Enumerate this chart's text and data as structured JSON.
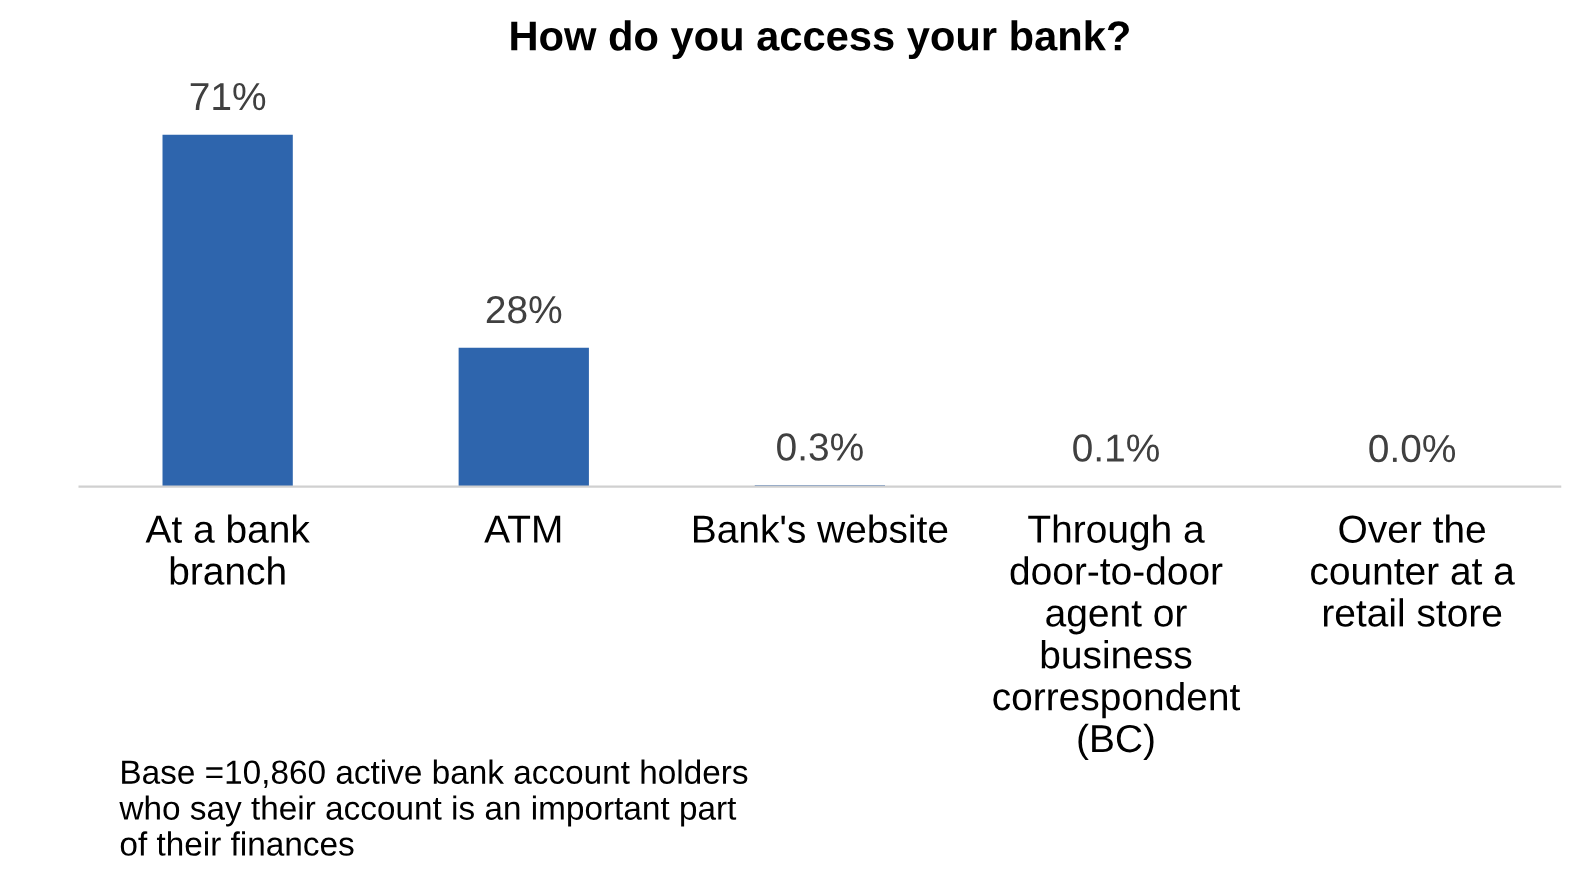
{
  "chart_data": {
    "type": "bar",
    "title": "How do you access your bank?",
    "categories": [
      "At a bank\nbranch",
      "ATM",
      "Bank's website",
      "Through a\ndoor-to-door\nagent or\nbusiness\ncorrespondent\n(BC)",
      "Over the\ncounter at a\nretail store"
    ],
    "values": [
      71,
      28,
      0.3,
      0.1,
      0.0
    ],
    "value_labels": [
      "71%",
      "28%",
      "0.3%",
      "0.1%",
      "0.0%"
    ],
    "color": "#2e65ad",
    "annotations": [
      "Base =10,860 active bank account holders\nwho say their account is an important part\nof their finances"
    ]
  }
}
